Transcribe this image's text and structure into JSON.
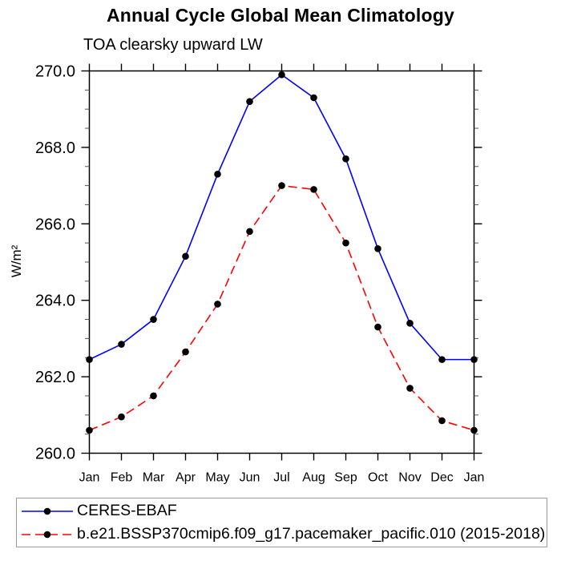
{
  "chart_data": {
    "type": "line",
    "title": "Annual Cycle Global Mean Climatology",
    "subtitle": "TOA clearsky upward LW",
    "ylabel": "W/m²",
    "xlabel": "",
    "categories": [
      "Jan",
      "Feb",
      "Mar",
      "Apr",
      "May",
      "Jun",
      "Jul",
      "Aug",
      "Sep",
      "Oct",
      "Nov",
      "Dec",
      "Jan"
    ],
    "ylim": [
      260.0,
      270.0
    ],
    "yticks": [
      {
        "value": 260.0,
        "label": "260.0"
      },
      {
        "value": 262.0,
        "label": "262.0"
      },
      {
        "value": 264.0,
        "label": "264.0"
      },
      {
        "value": 266.0,
        "label": "266.0"
      },
      {
        "value": 268.0,
        "label": "268.0"
      },
      {
        "value": 270.0,
        "label": "270.0"
      }
    ],
    "yminor_step": 0.5,
    "grid": false,
    "legend_position": "bottom",
    "marker": {
      "shape": "circle",
      "color": "#000000",
      "radius": 4.3
    },
    "axis_color": "#000000",
    "series": [
      {
        "name": "CERES-EBAF",
        "color": "#0000ff",
        "style": "solid",
        "values": [
          262.45,
          262.85,
          263.5,
          265.15,
          267.3,
          269.2,
          269.9,
          269.3,
          267.7,
          265.35,
          263.4,
          262.45,
          262.45
        ]
      },
      {
        "name": "b.e21.BSSP370cmip6.f09_g17.pacemaker_pacific.010 (2015-2018)",
        "color": "#ff0000",
        "style": "dashed",
        "values": [
          260.6,
          260.95,
          261.5,
          262.65,
          263.9,
          265.8,
          267.0,
          266.9,
          265.5,
          263.3,
          261.7,
          260.85,
          260.6
        ]
      }
    ]
  }
}
